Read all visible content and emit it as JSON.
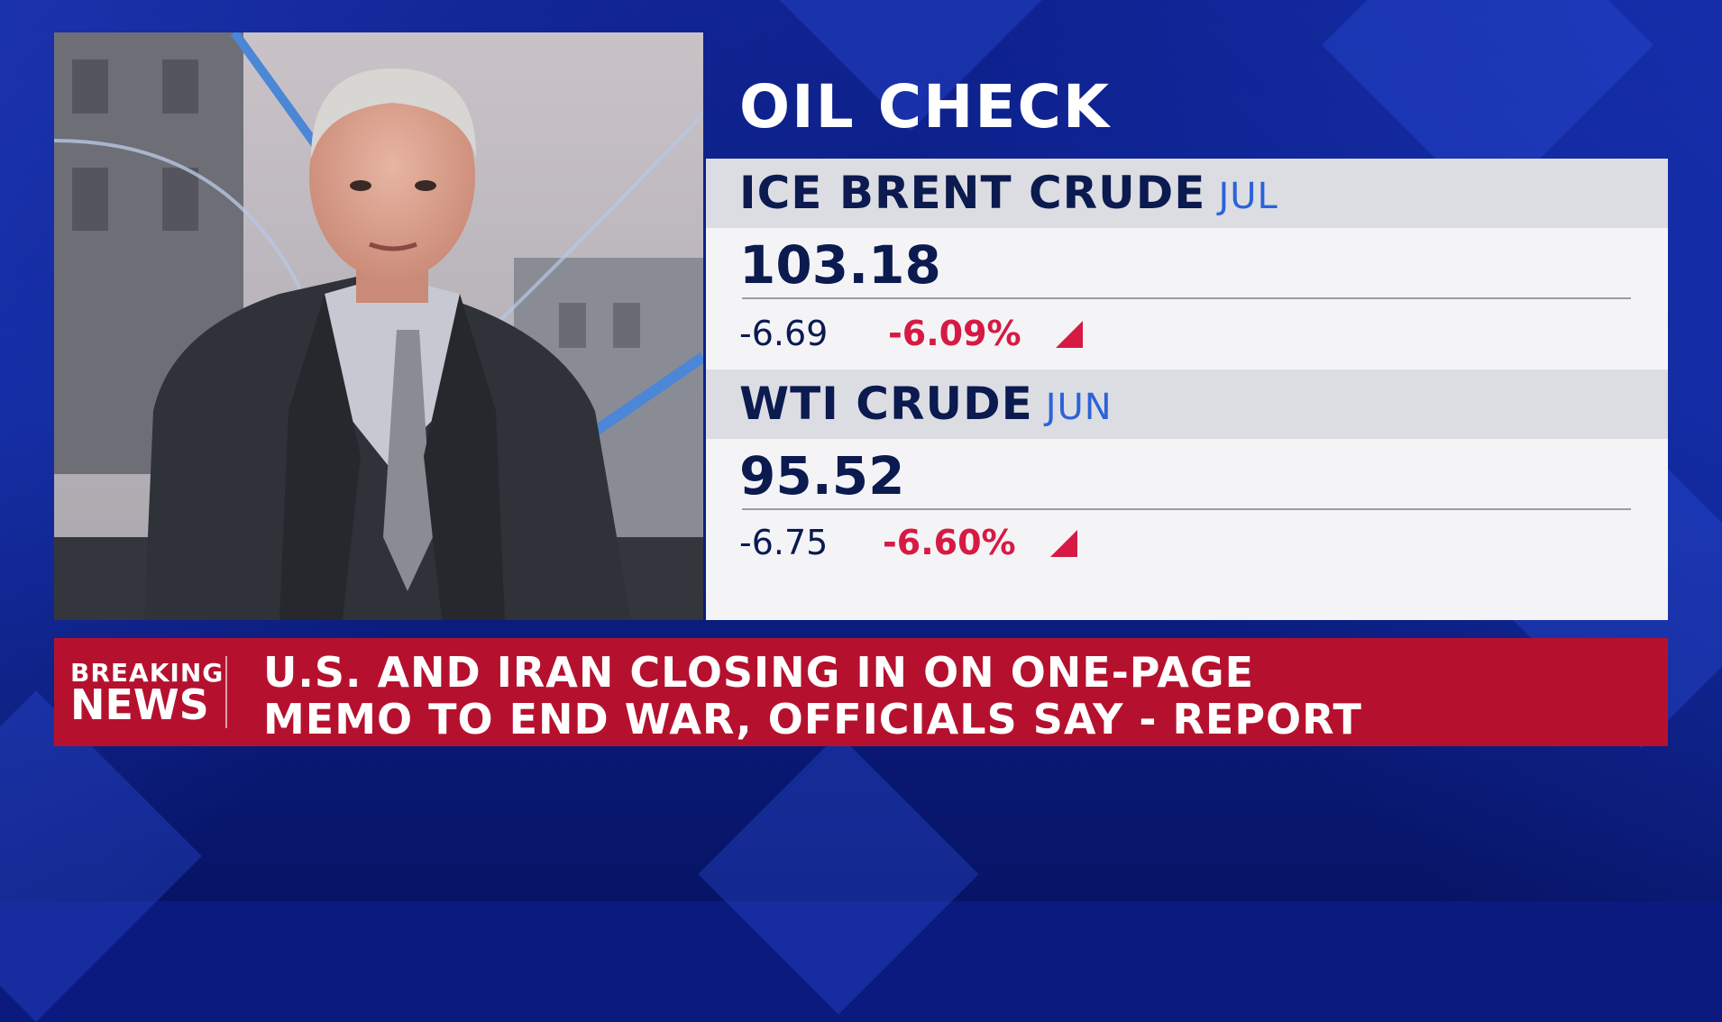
{
  "graphic": {
    "title": "OIL CHECK",
    "items": [
      {
        "name": "ICE BRENT CRUDE",
        "month": "JUL",
        "price": "103.18",
        "change": "-6.69",
        "pct": "-6.09%",
        "direction": "down"
      },
      {
        "name": "WTI CRUDE",
        "month": "JUN",
        "price": "95.52",
        "change": "-6.75",
        "pct": "-6.60%",
        "direction": "down"
      }
    ]
  },
  "banner": {
    "label_line1": "BREAKING",
    "label_line2": "NEWS",
    "headline_line1": "U.S. AND IRAN CLOSING IN ON ONE-PAGE",
    "headline_line2": "MEMO TO END WAR, OFFICIALS SAY - REPORT"
  },
  "colors": {
    "background": "#0a1a7e",
    "panel": "#f4f4f6",
    "header_row": "#dcdde3",
    "text_dark": "#0b1a4f",
    "month_blue": "#2b63d8",
    "negative_red": "#d61a44",
    "banner_red": "#b5112e"
  }
}
